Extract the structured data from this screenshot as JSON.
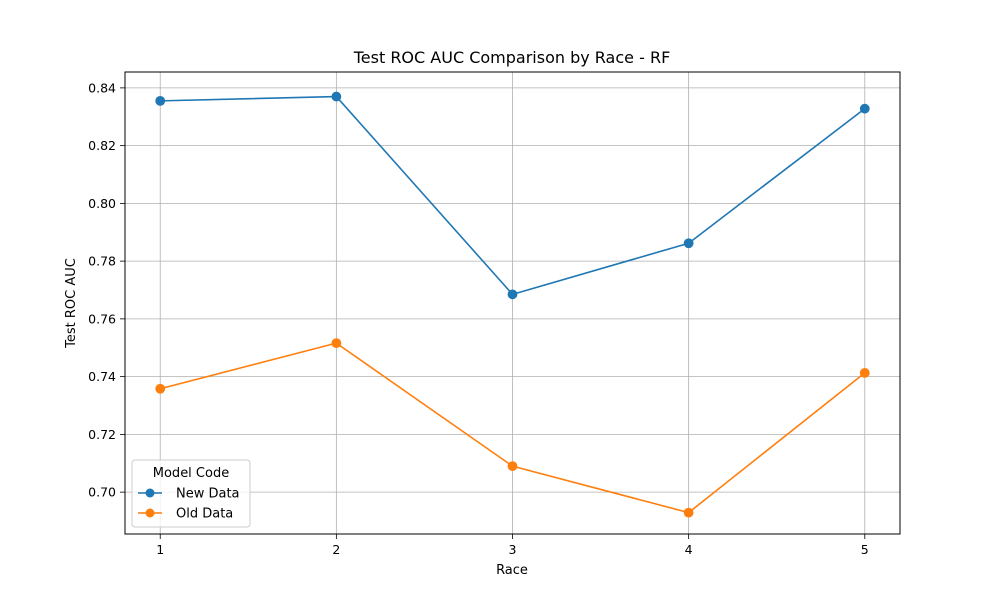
{
  "chart_data": {
    "type": "line",
    "title": "Test ROC AUC Comparison by Race - RF",
    "xlabel": "Race",
    "ylabel": "Test ROC AUC",
    "x": [
      1,
      2,
      3,
      4,
      5
    ],
    "x_tick_labels": [
      "1",
      "2",
      "3",
      "4",
      "5"
    ],
    "xlim": [
      0.8,
      5.2
    ],
    "ylim": [
      0.6855,
      0.8455
    ],
    "y_ticks": [
      0.7,
      0.72,
      0.74,
      0.76,
      0.78,
      0.8,
      0.82,
      0.84
    ],
    "y_tick_labels": [
      "0.70",
      "0.72",
      "0.74",
      "0.76",
      "0.78",
      "0.80",
      "0.82",
      "0.84"
    ],
    "grid": true,
    "legend": {
      "title": "Model Code",
      "placement": "lower-left"
    },
    "series": [
      {
        "name": "New Data",
        "color": "#1f77b4",
        "marker": "circle",
        "values": [
          0.8355,
          0.837,
          0.7685,
          0.7862,
          0.8328
        ]
      },
      {
        "name": "Old Data",
        "color": "#ff7f0e",
        "marker": "circle",
        "values": [
          0.7358,
          0.7516,
          0.709,
          0.6929,
          0.7413
        ]
      }
    ]
  }
}
